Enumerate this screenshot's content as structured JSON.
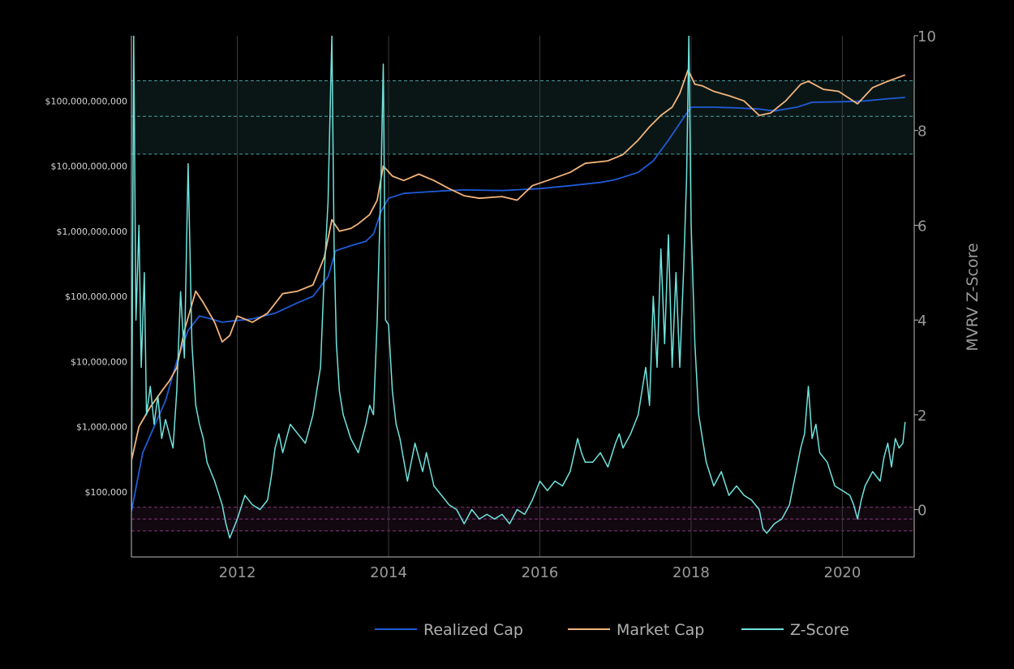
{
  "chart_data": {
    "type": "line",
    "title": "",
    "background_color": "#000000",
    "grid": {
      "vertical": true,
      "horizontal": false
    },
    "legend": {
      "placement": "bottom-center",
      "entries": [
        "Realized Cap",
        "Market Cap",
        "Z-Score"
      ]
    },
    "x_axis": {
      "label": "",
      "range": [
        2010.6,
        2020.95
      ],
      "ticks": [
        2012,
        2014,
        2016,
        2018,
        2020
      ],
      "tick_labels": [
        "2012",
        "2014",
        "2016",
        "2018",
        "2020"
      ]
    },
    "y_axis_left": {
      "label": "",
      "scale": "log",
      "range": [
        10000,
        1000000000000
      ],
      "ticks": [
        100000,
        1000000,
        10000000,
        100000000,
        1000000000,
        10000000000,
        100000000000
      ],
      "tick_labels": [
        "$100,000",
        "$1,000,000",
        "$10,000,000",
        "$100,000,000",
        "$1,000,000,000",
        "$10,000,000,000",
        "$100,000,000,000"
      ]
    },
    "y_axis_right": {
      "label": "MVRV Z-Score",
      "scale": "linear",
      "range": [
        -1,
        10
      ],
      "ticks": [
        0,
        2,
        4,
        6,
        8,
        10
      ],
      "tick_labels": [
        "0",
        "2",
        "4",
        "6",
        "8",
        "10"
      ]
    },
    "bands": [
      {
        "zone": "overvalued",
        "axis": "right",
        "from": 7.5,
        "to": 9.05,
        "mid": 8.3,
        "color": "#5fd3d3"
      },
      {
        "zone": "undervalued",
        "axis": "right",
        "from": -0.45,
        "to": 0.05,
        "mid": -0.2,
        "color": "#b04aa0"
      }
    ],
    "series": [
      {
        "name": "Realized Cap",
        "axis": "left",
        "color": "#1f5bd6",
        "x": [
          2010.6,
          2010.75,
          2010.9,
          2011.05,
          2011.2,
          2011.35,
          2011.5,
          2011.65,
          2011.8,
          2011.95,
          2012.2,
          2012.5,
          2012.8,
          2013.0,
          2013.2,
          2013.3,
          2013.5,
          2013.7,
          2013.8,
          2013.9,
          2014.0,
          2014.2,
          2014.5,
          2014.8,
          2015.0,
          2015.5,
          2016.0,
          2016.4,
          2016.8,
          2017.0,
          2017.3,
          2017.5,
          2017.7,
          2017.9,
          2018.0,
          2018.3,
          2018.6,
          2018.9,
          2019.1,
          2019.4,
          2019.6,
          2020.0,
          2020.3,
          2020.6,
          2020.83
        ],
        "values": [
          50000,
          400000,
          1000000,
          2500000,
          10000000,
          30000000,
          50000000,
          45000000,
          40000000,
          42000000,
          45000000,
          55000000,
          80000000,
          100000000,
          200000000,
          500000000,
          600000000,
          700000000,
          900000000,
          2000000000,
          3200000000,
          3800000000,
          4000000000,
          4200000000,
          4300000000,
          4200000000,
          4500000000,
          5000000000,
          5600000000,
          6200000000,
          8000000000,
          12000000000,
          25000000000,
          55000000000,
          80000000000,
          80000000000,
          78000000000,
          75000000000,
          70000000000,
          80000000000,
          95000000000,
          97000000000,
          100000000000,
          108000000000,
          113000000000
        ]
      },
      {
        "name": "Market Cap",
        "axis": "left",
        "color": "#f2b47c",
        "x": [
          2010.6,
          2010.7,
          2010.85,
          2011.0,
          2011.1,
          2011.2,
          2011.3,
          2011.45,
          2011.55,
          2011.7,
          2011.8,
          2011.9,
          2012.0,
          2012.2,
          2012.4,
          2012.6,
          2012.8,
          2013.0,
          2013.15,
          2013.25,
          2013.35,
          2013.5,
          2013.6,
          2013.75,
          2013.85,
          2013.93,
          2014.05,
          2014.2,
          2014.4,
          2014.6,
          2014.8,
          2015.0,
          2015.2,
          2015.5,
          2015.7,
          2015.9,
          2016.1,
          2016.4,
          2016.6,
          2016.9,
          2017.1,
          2017.3,
          2017.45,
          2017.6,
          2017.75,
          2017.85,
          2017.96,
          2018.05,
          2018.15,
          2018.3,
          2018.5,
          2018.7,
          2018.9,
          2019.05,
          2019.25,
          2019.45,
          2019.55,
          2019.75,
          2019.95,
          2020.2,
          2020.4,
          2020.6,
          2020.83
        ],
        "values": [
          300000,
          1000000,
          2000000,
          3500000,
          5000000,
          8000000,
          30000000,
          120000000,
          80000000,
          40000000,
          20000000,
          25000000,
          50000000,
          40000000,
          55000000,
          110000000,
          120000000,
          150000000,
          400000000,
          1500000000,
          1000000000,
          1100000000,
          1300000000,
          1800000000,
          3000000000,
          10000000000,
          7000000000,
          6000000000,
          7500000000,
          6000000000,
          4500000000,
          3500000000,
          3200000000,
          3400000000,
          3000000000,
          5000000000,
          6000000000,
          8000000000,
          11000000000,
          12000000000,
          15000000000,
          25000000000,
          40000000000,
          60000000000,
          80000000000,
          130000000000,
          300000000000,
          180000000000,
          170000000000,
          140000000000,
          120000000000,
          100000000000,
          60000000000,
          65000000000,
          100000000000,
          180000000000,
          200000000000,
          150000000000,
          140000000000,
          90000000000,
          160000000000,
          200000000000,
          250000000000
        ]
      },
      {
        "name": "Z-Score",
        "axis": "right",
        "color": "#6fe3dd",
        "x": [
          2010.6,
          2010.63,
          2010.66,
          2010.7,
          2010.73,
          2010.77,
          2010.8,
          2010.85,
          2010.9,
          2010.95,
          2011.0,
          2011.05,
          2011.1,
          2011.15,
          2011.2,
          2011.25,
          2011.3,
          2011.35,
          2011.4,
          2011.45,
          2011.5,
          2011.55,
          2011.6,
          2011.7,
          2011.8,
          2011.85,
          2011.9,
          2012.0,
          2012.1,
          2012.2,
          2012.3,
          2012.4,
          2012.45,
          2012.5,
          2012.55,
          2012.6,
          2012.7,
          2012.8,
          2012.9,
          2013.0,
          2013.1,
          2013.15,
          2013.2,
          2013.25,
          2013.28,
          2013.31,
          2013.35,
          2013.4,
          2013.5,
          2013.6,
          2013.7,
          2013.75,
          2013.8,
          2013.85,
          2013.9,
          2013.93,
          2013.96,
          2014.0,
          2014.05,
          2014.1,
          2014.15,
          2014.25,
          2014.35,
          2014.45,
          2014.5,
          2014.6,
          2014.7,
          2014.8,
          2014.9,
          2015.0,
          2015.1,
          2015.2,
          2015.3,
          2015.4,
          2015.5,
          2015.6,
          2015.7,
          2015.8,
          2015.9,
          2016.0,
          2016.1,
          2016.2,
          2016.3,
          2016.4,
          2016.5,
          2016.55,
          2016.6,
          2016.7,
          2016.8,
          2016.9,
          2017.0,
          2017.05,
          2017.1,
          2017.2,
          2017.3,
          2017.4,
          2017.45,
          2017.5,
          2017.55,
          2017.6,
          2017.65,
          2017.7,
          2017.75,
          2017.8,
          2017.85,
          2017.9,
          2017.94,
          2017.97,
          2018.0,
          2018.05,
          2018.1,
          2018.15,
          2018.2,
          2018.3,
          2018.4,
          2018.5,
          2018.6,
          2018.7,
          2018.8,
          2018.9,
          2018.95,
          2019.0,
          2019.1,
          2019.2,
          2019.3,
          2019.4,
          2019.45,
          2019.5,
          2019.55,
          2019.6,
          2019.65,
          2019.7,
          2019.8,
          2019.9,
          2020.0,
          2020.1,
          2020.15,
          2020.2,
          2020.25,
          2020.3,
          2020.4,
          2020.5,
          2020.55,
          2020.6,
          2020.65,
          2020.7,
          2020.75,
          2020.8,
          2020.83
        ],
        "values": [
          0,
          10,
          4,
          6,
          3,
          5,
          2,
          2.6,
          1.8,
          2.4,
          1.5,
          1.9,
          1.6,
          1.3,
          2.5,
          4.6,
          3.2,
          7.3,
          3.5,
          2.2,
          1.8,
          1.5,
          1.0,
          0.6,
          0.1,
          -0.3,
          -0.6,
          -0.2,
          0.3,
          0.1,
          0.0,
          0.2,
          0.7,
          1.3,
          1.6,
          1.2,
          1.8,
          1.6,
          1.4,
          2.0,
          3.0,
          5.0,
          6.5,
          10,
          5.5,
          3.5,
          2.5,
          2.0,
          1.5,
          1.2,
          1.8,
          2.2,
          2.0,
          4.0,
          7.0,
          9.4,
          4.0,
          3.9,
          2.5,
          1.8,
          1.5,
          0.6,
          1.4,
          0.8,
          1.2,
          0.5,
          0.3,
          0.1,
          0.0,
          -0.3,
          0.0,
          -0.2,
          -0.1,
          -0.2,
          -0.1,
          -0.3,
          0.0,
          -0.1,
          0.2,
          0.6,
          0.4,
          0.6,
          0.5,
          0.8,
          1.5,
          1.2,
          1.0,
          1.0,
          1.2,
          0.9,
          1.4,
          1.6,
          1.3,
          1.6,
          2.0,
          3.0,
          2.2,
          4.5,
          3.0,
          5.5,
          3.5,
          5.8,
          3.0,
          5.0,
          3.0,
          5.0,
          7.0,
          10.0,
          6.0,
          3.5,
          2.0,
          1.5,
          1.0,
          0.5,
          0.8,
          0.3,
          0.5,
          0.3,
          0.2,
          0.0,
          -0.4,
          -0.5,
          -0.3,
          -0.2,
          0.1,
          0.9,
          1.3,
          1.6,
          2.6,
          1.5,
          1.8,
          1.2,
          1.0,
          0.5,
          0.4,
          0.3,
          0.1,
          -0.2,
          0.2,
          0.5,
          0.8,
          0.6,
          1.1,
          1.4,
          0.9,
          1.5,
          1.3,
          1.4,
          1.85
        ]
      }
    ]
  }
}
